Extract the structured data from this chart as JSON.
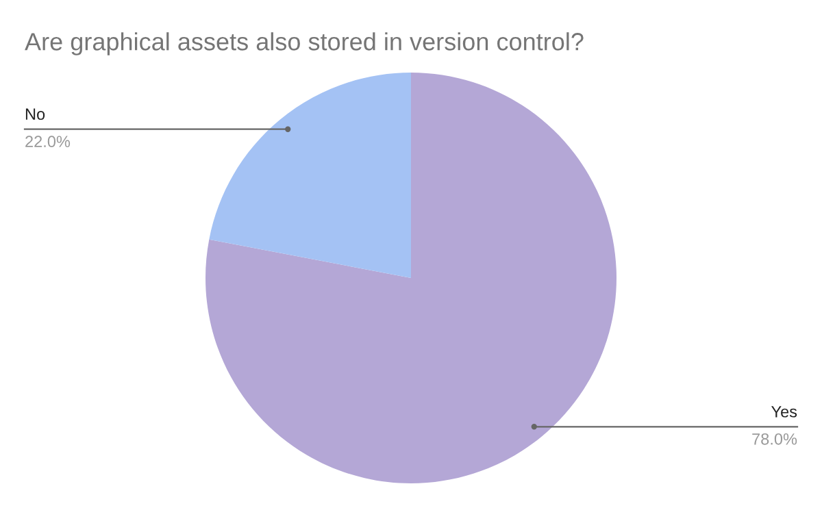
{
  "chart_data": {
    "type": "pie",
    "title": "Are graphical assets also stored in version control?",
    "categories": [
      "Yes",
      "No"
    ],
    "values": [
      78,
      22
    ],
    "value_labels": [
      "78.0%",
      "22.0%"
    ],
    "colors": [
      "#b4a7d6",
      "#a4c2f4"
    ],
    "legend": false
  }
}
